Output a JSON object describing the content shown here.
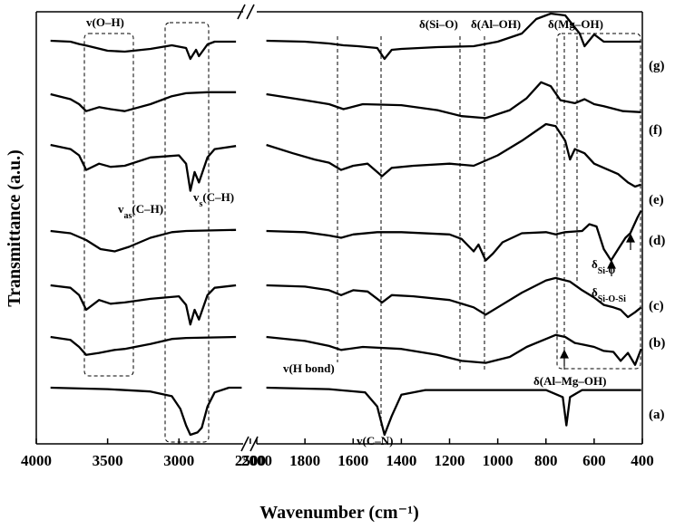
{
  "chart_data": {
    "type": "line",
    "xlabel": "Wavenumber (cm⁻¹)",
    "ylabel": "Transmittance (a.u.)",
    "x_axis": {
      "reversed": true,
      "broken": true,
      "segments": [
        [
          4000,
          2550
        ],
        [
          2000,
          400
        ]
      ],
      "ticks": [
        "4000",
        "3500",
        "3000",
        "2500",
        "2000",
        "1800",
        "1600",
        "1400",
        "1200",
        "1000",
        "800",
        "600",
        "400"
      ]
    },
    "grid": false,
    "series": [
      {
        "name": "(g)",
        "points": [
          [
            3900,
            0
          ],
          [
            3760,
            0.05
          ],
          [
            3700,
            0.18
          ],
          [
            3640,
            0.28
          ],
          [
            3500,
            0.55
          ],
          [
            3380,
            0.6
          ],
          [
            3200,
            0.45
          ],
          [
            3050,
            0.25
          ],
          [
            2950,
            0.4
          ],
          [
            2920,
            1
          ],
          [
            2880,
            0.5
          ],
          [
            2860,
            0.85
          ],
          [
            2800,
            0.2
          ],
          [
            2750,
            0.05
          ],
          [
            2600,
            0.05
          ],
          [
            1960,
            0
          ],
          [
            1800,
            0.05
          ],
          [
            1700,
            0.15
          ],
          [
            1640,
            0.25
          ],
          [
            1580,
            0.3
          ],
          [
            1500,
            0.4
          ],
          [
            1470,
            1
          ],
          [
            1440,
            0.5
          ],
          [
            1400,
            0.45
          ],
          [
            1250,
            0.35
          ],
          [
            1100,
            0.3
          ],
          [
            1000,
            0.05
          ],
          [
            900,
            -0.4
          ],
          [
            840,
            -1.2
          ],
          [
            780,
            -1.5
          ],
          [
            720,
            -1.4
          ],
          [
            660,
            -0.4
          ],
          [
            640,
            0.3
          ],
          [
            600,
            -0.35
          ],
          [
            560,
            0.05
          ],
          [
            480,
            0.05
          ],
          [
            405,
            0.05
          ]
        ]
      },
      {
        "name": "(f)",
        "points": [
          [
            3900,
            0
          ],
          [
            3760,
            0.25
          ],
          [
            3700,
            0.5
          ],
          [
            3650,
            0.85
          ],
          [
            3560,
            0.65
          ],
          [
            3480,
            0.75
          ],
          [
            3380,
            0.85
          ],
          [
            3200,
            0.5
          ],
          [
            3050,
            0.1
          ],
          [
            2950,
            -0.05
          ],
          [
            2800,
            -0.1
          ],
          [
            2600,
            -0.1
          ],
          [
            1960,
            0
          ],
          [
            1800,
            0.3
          ],
          [
            1700,
            0.5
          ],
          [
            1640,
            0.75
          ],
          [
            1560,
            0.5
          ],
          [
            1400,
            0.55
          ],
          [
            1250,
            0.8
          ],
          [
            1150,
            1.1
          ],
          [
            1050,
            1.2
          ],
          [
            950,
            0.8
          ],
          [
            880,
            0.2
          ],
          [
            820,
            -0.6
          ],
          [
            780,
            -0.4
          ],
          [
            740,
            0.3
          ],
          [
            680,
            0.45
          ],
          [
            640,
            0.25
          ],
          [
            600,
            0.5
          ],
          [
            560,
            0.6
          ],
          [
            480,
            0.85
          ],
          [
            405,
            0.9
          ]
        ]
      },
      {
        "name": "(e)",
        "points": [
          [
            3900,
            0
          ],
          [
            3760,
            0.2
          ],
          [
            3700,
            0.5
          ],
          [
            3650,
            1.2
          ],
          [
            3560,
            0.9
          ],
          [
            3480,
            1.05
          ],
          [
            3380,
            1.0
          ],
          [
            3200,
            0.6
          ],
          [
            3100,
            0.55
          ],
          [
            3000,
            0.5
          ],
          [
            2950,
            0.9
          ],
          [
            2920,
            2.2
          ],
          [
            2890,
            1.3
          ],
          [
            2860,
            1.8
          ],
          [
            2800,
            0.6
          ],
          [
            2750,
            0.2
          ],
          [
            2600,
            0.05
          ],
          [
            1960,
            0
          ],
          [
            1850,
            0.4
          ],
          [
            1760,
            0.7
          ],
          [
            1700,
            0.85
          ],
          [
            1650,
            1.2
          ],
          [
            1600,
            1.0
          ],
          [
            1540,
            0.9
          ],
          [
            1480,
            1.5
          ],
          [
            1440,
            1.1
          ],
          [
            1350,
            1.0
          ],
          [
            1200,
            0.9
          ],
          [
            1100,
            1.0
          ],
          [
            1000,
            0.5
          ],
          [
            900,
            -0.2
          ],
          [
            800,
            -1.0
          ],
          [
            760,
            -0.9
          ],
          [
            720,
            -0.2
          ],
          [
            700,
            0.7
          ],
          [
            680,
            0.2
          ],
          [
            640,
            0.4
          ],
          [
            600,
            0.9
          ],
          [
            560,
            1.1
          ],
          [
            500,
            1.4
          ],
          [
            460,
            1.8
          ],
          [
            430,
            2.0
          ],
          [
            405,
            1.9
          ]
        ]
      },
      {
        "name": "(d)",
        "points": [
          [
            3900,
            0
          ],
          [
            3760,
            0.1
          ],
          [
            3650,
            0.4
          ],
          [
            3550,
            0.8
          ],
          [
            3450,
            0.9
          ],
          [
            3350,
            0.7
          ],
          [
            3200,
            0.3
          ],
          [
            3050,
            0.05
          ],
          [
            2950,
            0.0
          ],
          [
            2600,
            -0.05
          ],
          [
            1960,
            0
          ],
          [
            1800,
            0.05
          ],
          [
            1700,
            0.2
          ],
          [
            1650,
            0.3
          ],
          [
            1600,
            0.15
          ],
          [
            1500,
            0.05
          ],
          [
            1400,
            0.05
          ],
          [
            1200,
            0.15
          ],
          [
            1150,
            0.35
          ],
          [
            1100,
            0.9
          ],
          [
            1080,
            0.6
          ],
          [
            1050,
            1.3
          ],
          [
            1020,
            1.0
          ],
          [
            980,
            0.5
          ],
          [
            900,
            0.1
          ],
          [
            800,
            0.05
          ],
          [
            760,
            0.15
          ],
          [
            720,
            0.05
          ],
          [
            650,
            0.0
          ],
          [
            620,
            -0.3
          ],
          [
            590,
            -0.2
          ],
          [
            560,
            0.8
          ],
          [
            530,
            1.3
          ],
          [
            500,
            0.8
          ],
          [
            470,
            0.3
          ],
          [
            450,
            0.1
          ],
          [
            420,
            -0.6
          ],
          [
            405,
            -0.9
          ]
        ]
      },
      {
        "name": "(c)",
        "points": [
          [
            3900,
            0
          ],
          [
            3760,
            0.1
          ],
          [
            3700,
            0.4
          ],
          [
            3650,
            1.0
          ],
          [
            3560,
            0.6
          ],
          [
            3480,
            0.75
          ],
          [
            3380,
            0.7
          ],
          [
            3200,
            0.55
          ],
          [
            3100,
            0.5
          ],
          [
            3000,
            0.45
          ],
          [
            2950,
            0.8
          ],
          [
            2920,
            1.6
          ],
          [
            2890,
            1.0
          ],
          [
            2860,
            1.4
          ],
          [
            2800,
            0.4
          ],
          [
            2750,
            0.1
          ],
          [
            2600,
            0.0
          ],
          [
            1960,
            0
          ],
          [
            1800,
            0.05
          ],
          [
            1700,
            0.2
          ],
          [
            1650,
            0.4
          ],
          [
            1600,
            0.2
          ],
          [
            1540,
            0.25
          ],
          [
            1480,
            0.7
          ],
          [
            1440,
            0.4
          ],
          [
            1350,
            0.45
          ],
          [
            1200,
            0.6
          ],
          [
            1100,
            0.9
          ],
          [
            1050,
            1.2
          ],
          [
            1000,
            0.9
          ],
          [
            900,
            0.3
          ],
          [
            800,
            -0.2
          ],
          [
            760,
            -0.3
          ],
          [
            700,
            -0.15
          ],
          [
            650,
            0.2
          ],
          [
            600,
            0.5
          ],
          [
            560,
            0.8
          ],
          [
            520,
            0.9
          ],
          [
            490,
            1.0
          ],
          [
            460,
            1.3
          ],
          [
            430,
            1.1
          ],
          [
            405,
            0.9
          ]
        ]
      },
      {
        "name": "(b)",
        "points": [
          [
            3900,
            0
          ],
          [
            3760,
            0.15
          ],
          [
            3700,
            0.5
          ],
          [
            3650,
            0.9
          ],
          [
            3560,
            0.8
          ],
          [
            3450,
            0.65
          ],
          [
            3380,
            0.6
          ],
          [
            3200,
            0.35
          ],
          [
            3050,
            0.1
          ],
          [
            2950,
            0.05
          ],
          [
            2600,
            0.0
          ],
          [
            1960,
            0
          ],
          [
            1800,
            0.2
          ],
          [
            1700,
            0.45
          ],
          [
            1650,
            0.65
          ],
          [
            1560,
            0.5
          ],
          [
            1400,
            0.6
          ],
          [
            1250,
            0.9
          ],
          [
            1150,
            1.2
          ],
          [
            1050,
            1.3
          ],
          [
            950,
            1.0
          ],
          [
            880,
            0.5
          ],
          [
            800,
            0.1
          ],
          [
            760,
            -0.1
          ],
          [
            720,
            0.0
          ],
          [
            680,
            0.3
          ],
          [
            640,
            0.4
          ],
          [
            600,
            0.5
          ],
          [
            560,
            0.7
          ],
          [
            520,
            0.75
          ],
          [
            490,
            1.2
          ],
          [
            460,
            0.8
          ],
          [
            430,
            1.4
          ],
          [
            405,
            0.6
          ]
        ]
      },
      {
        "name": "(a)",
        "points": [
          [
            3900,
            0
          ],
          [
            3500,
            0.03
          ],
          [
            3200,
            0.08
          ],
          [
            3050,
            0.18
          ],
          [
            2990,
            0.45
          ],
          [
            2950,
            0.8
          ],
          [
            2920,
            1.0
          ],
          [
            2870,
            0.95
          ],
          [
            2840,
            0.85
          ],
          [
            2800,
            0.4
          ],
          [
            2750,
            0.1
          ],
          [
            2650,
            0.0
          ],
          [
            2560,
            0.0
          ],
          [
            1960,
            0
          ],
          [
            1700,
            0.03
          ],
          [
            1550,
            0.1
          ],
          [
            1500,
            0.4
          ],
          [
            1470,
            1.0
          ],
          [
            1440,
            0.6
          ],
          [
            1400,
            0.15
          ],
          [
            1300,
            0.05
          ],
          [
            1000,
            0.05
          ],
          [
            800,
            0.05
          ],
          [
            730,
            0.2
          ],
          [
            715,
            0.8
          ],
          [
            700,
            0.2
          ],
          [
            650,
            0.05
          ],
          [
            405,
            0.05
          ]
        ]
      }
    ],
    "annotations": {
      "v_oh": "v(O–H)",
      "v_as_ch": "vas(C–H)",
      "v_s_ch": "vs(C–H)",
      "v_hbond": "v(H bond)",
      "v_cn": "v(C–N)",
      "d_sio": "δ(Si–O)",
      "d_aloh": "δ(Al–OH)",
      "d_mgoh": "δ(Mg–OH)",
      "d_almgoh": "δ(Al–Mg–OH)",
      "d_sio_low": "δSi-O",
      "d_siosi": "δSi-O-Si"
    }
  }
}
